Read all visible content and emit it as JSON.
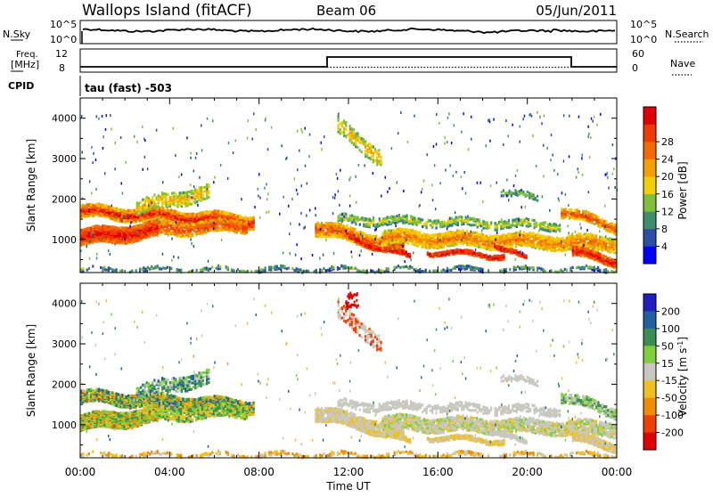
{
  "header": {
    "station": "Wallops Island (fitACF)",
    "beam": "Beam 06",
    "date": "05/Jun/2011"
  },
  "summary": {
    "nsky_label": "N.Sky",
    "nsearch_label": "N.Search",
    "count_ticks": [
      "10^5",
      "10^0"
    ],
    "freq_label": "Freq.",
    "freq_unit": "[MHz]",
    "nave_label": "Nave",
    "freq_ticks": [
      "12",
      "8"
    ],
    "nave_ticks": [
      "60",
      "0"
    ],
    "cpid_label": "CPID",
    "cpid_text": "tau (fast) -503"
  },
  "colors": {
    "power": [
      "#0000ff",
      "#2b4fa5",
      "#3f8f6e",
      "#7fbf3a",
      "#f0d000",
      "#f5a000",
      "#f46a00",
      "#f03a00",
      "#e00000"
    ],
    "velocity": [
      "#2020c0",
      "#2060a0",
      "#3a8f50",
      "#7fcf3a",
      "#c8c8c0",
      "#f0c020",
      "#f08c00",
      "#f04000",
      "#e00000"
    ]
  },
  "chart_data": [
    {
      "type": "heatmap",
      "name": "power",
      "xlabel": "",
      "ylabel": "Slant Range [km]",
      "y_ticks": [
        1000,
        2000,
        3000,
        4000
      ],
      "x_range_hours": [
        0,
        24
      ],
      "y_range_km": [
        180,
        4500
      ],
      "colorbar": {
        "label": "Power [dB]",
        "levels": [
          0,
          4,
          8,
          12,
          16,
          20,
          24,
          28,
          32
        ],
        "tick_labels": [
          "4",
          "8",
          "12",
          "16",
          "20",
          "24",
          "28"
        ]
      }
    },
    {
      "type": "heatmap",
      "name": "velocity",
      "xlabel": "Time UT",
      "ylabel": "Slant Range [km]",
      "x_ticks": [
        "00:00",
        "04:00",
        "08:00",
        "12:00",
        "16:00",
        "20:00",
        "00:00"
      ],
      "y_ticks": [
        1000,
        2000,
        3000,
        4000
      ],
      "x_range_hours": [
        0,
        24
      ],
      "y_range_km": [
        180,
        4500
      ],
      "colorbar": {
        "label": "Velocity [m s^-1]",
        "tick_labels": [
          "200",
          "100",
          "50",
          "15",
          "-15",
          "-50",
          "-100",
          "-200"
        ]
      }
    }
  ]
}
